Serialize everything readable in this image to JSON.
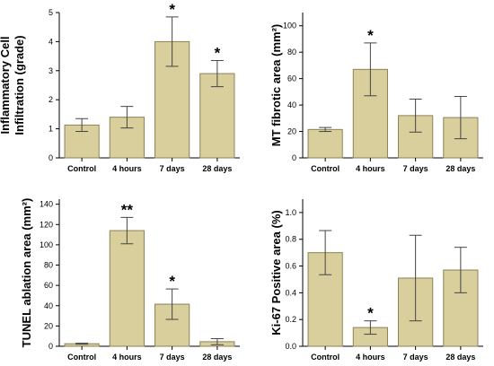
{
  "colors": {
    "bar_fill": "#d8cf9c",
    "bar_stroke": "#8c8258",
    "axis": "#000000",
    "error": "#444444"
  },
  "chart_data": [
    {
      "type": "bar",
      "title": "",
      "ylabel_lines": [
        "Inflammatory Cell",
        "Infiltration (grade)"
      ],
      "xlabel": "",
      "categories": [
        "Control",
        "4 hours",
        "7 days",
        "28 days"
      ],
      "values": [
        1.13,
        1.4,
        4.0,
        2.9
      ],
      "errors": [
        0.22,
        0.37,
        0.85,
        0.45
      ],
      "significance": [
        "",
        "",
        "*",
        "*"
      ],
      "ylim": [
        0,
        5
      ],
      "yticks": [
        "0",
        "1",
        "2",
        "3",
        "4",
        "5"
      ],
      "ytick_values": [
        0,
        1,
        2,
        3,
        4,
        5
      ]
    },
    {
      "type": "bar",
      "title": "",
      "ylabel_lines": [
        "MT fibrotic area (mm²)"
      ],
      "xlabel": "",
      "categories": [
        "Control",
        "4 hours",
        "7 days",
        "28 days"
      ],
      "values": [
        21.5,
        67.0,
        32.0,
        30.5
      ],
      "errors": [
        1.5,
        20.0,
        12.5,
        16.0
      ],
      "significance": [
        "",
        "*",
        "",
        ""
      ],
      "ylim": [
        0,
        110
      ],
      "yticks": [
        "0",
        "20",
        "40",
        "60",
        "80",
        "100"
      ],
      "ytick_values": [
        0,
        20,
        40,
        60,
        80,
        100
      ]
    },
    {
      "type": "bar",
      "title": "",
      "ylabel_lines": [
        "TUNEL ablation area (mm²)"
      ],
      "xlabel": "",
      "categories": [
        "Control",
        "4 hours",
        "7 days",
        "28 days"
      ],
      "values": [
        2.5,
        114.0,
        41.5,
        4.5
      ],
      "errors": [
        0.5,
        13.0,
        15.0,
        3.0
      ],
      "significance": [
        "",
        "**",
        "*",
        ""
      ],
      "ylim": [
        0,
        145
      ],
      "yticks": [
        "0",
        "20",
        "40",
        "60",
        "80",
        "100",
        "120",
        "140"
      ],
      "ytick_values": [
        0,
        20,
        40,
        60,
        80,
        100,
        120,
        140
      ]
    },
    {
      "type": "bar",
      "title": "",
      "ylabel_lines": [
        "Ki-67 Positive area (%)"
      ],
      "xlabel": "",
      "categories": [
        "Control",
        "4 hours",
        "7 days",
        "28 days"
      ],
      "values": [
        0.7,
        0.14,
        0.51,
        0.57
      ],
      "errors": [
        0.165,
        0.05,
        0.32,
        0.17
      ],
      "significance": [
        "",
        "*",
        "",
        ""
      ],
      "ylim": [
        0,
        1.1
      ],
      "yticks": [
        "0.0",
        "0.2",
        "0.4",
        "0.6",
        "0.8",
        "1.0"
      ],
      "ytick_values": [
        0,
        0.2,
        0.4,
        0.6,
        0.8,
        1.0
      ]
    }
  ]
}
